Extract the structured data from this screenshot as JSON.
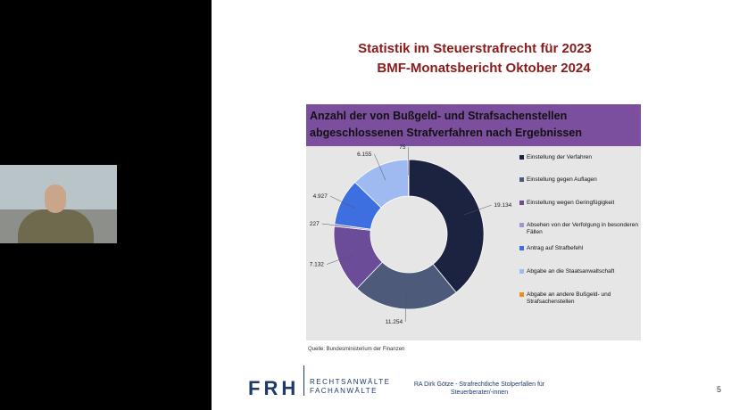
{
  "slide": {
    "title_lines": [
      "Statistik im Steuerstrafrecht für 2023",
      "BMF-Monatsbericht Oktober 2024"
    ],
    "source": "Quelle: Bundesministerium der Finanzen",
    "logo": "FRH",
    "logo_lines": [
      "RECHTSANWÄLTE",
      "FACHANWÄLTE"
    ],
    "footer_lines": [
      "RA Dirk Götze - Strafrechtliche Stolperfallen für",
      "Steuerberater/-innen"
    ],
    "page_number": "5"
  },
  "chart_data": {
    "type": "donut",
    "title": "Anzahl der von Bußgeld- und Strafsachenstellen abgeschlossenen Strafverfahren nach Ergebnissen",
    "categories": [
      "Einstellung der Verfahren",
      "Einstellung gegen Auflagen",
      "Einstellung wegen Geringfügigkeit",
      "Absehen von der Verfolgung in besonderen Fällen",
      "Antrag auf Strafbefehl",
      "Abgabe an die Staatsanwaltschaft",
      "Abgabe an andere Bußgeld- und Strafsachenstellen"
    ],
    "values": [
      19134,
      11254,
      7132,
      227,
      4927,
      6155,
      75
    ],
    "value_labels": [
      "19.134",
      "11.254",
      "7.132",
      "227",
      "4.927",
      "6.155",
      "75"
    ],
    "colors": [
      "#1b2340",
      "#4d5a7a",
      "#6a4c98",
      "#a294d4",
      "#3d6fe0",
      "#9fbaf0",
      "#e8901a"
    ],
    "legend": "right"
  }
}
